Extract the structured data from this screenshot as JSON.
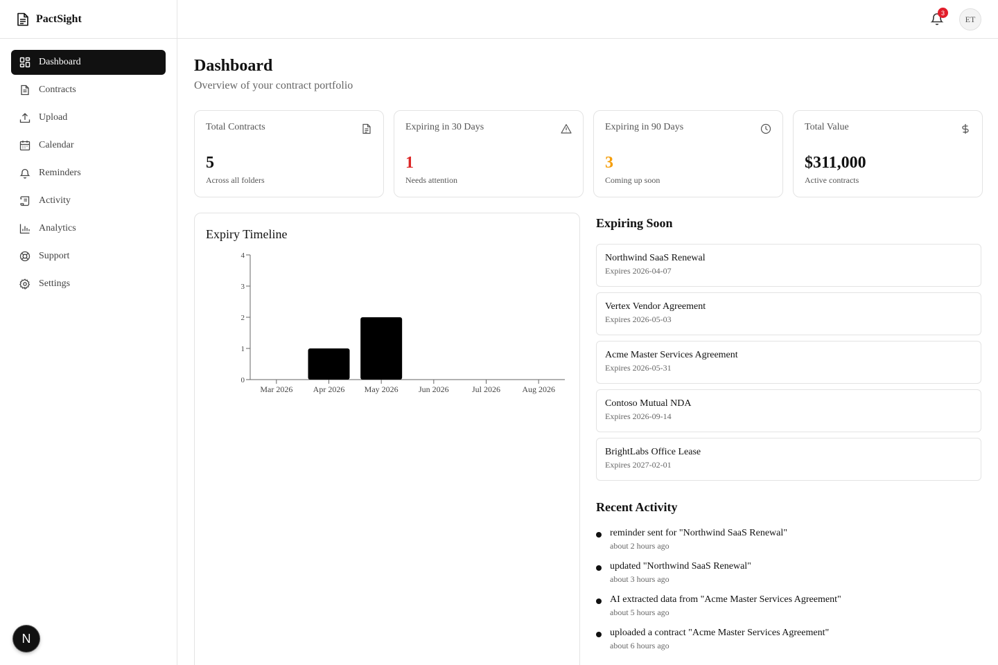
{
  "brand": {
    "name": "PactSight"
  },
  "nav": [
    {
      "label": "Dashboard",
      "icon": "dashboard-icon",
      "active": true
    },
    {
      "label": "Contracts",
      "icon": "file-icon"
    },
    {
      "label": "Upload",
      "icon": "upload-icon"
    },
    {
      "label": "Calendar",
      "icon": "calendar-icon"
    },
    {
      "label": "Reminders",
      "icon": "bell-icon"
    },
    {
      "label": "Activity",
      "icon": "scroll-icon"
    },
    {
      "label": "Analytics",
      "icon": "bar-chart-icon"
    },
    {
      "label": "Support",
      "icon": "lifebuoy-icon"
    },
    {
      "label": "Settings",
      "icon": "gear-icon"
    }
  ],
  "dev_badge": "N",
  "header": {
    "notification_count": "3",
    "avatar_initials": "ET"
  },
  "page": {
    "title": "Dashboard",
    "subtitle": "Overview of your contract portfolio"
  },
  "stats": [
    {
      "label": "Total Contracts",
      "value": "5",
      "note": "Across all folders",
      "icon": "file-icon",
      "color": "#111111"
    },
    {
      "label": "Expiring in 30 Days",
      "value": "1",
      "note": "Needs attention",
      "icon": "alert-triangle-icon",
      "color": "#dc2626"
    },
    {
      "label": "Expiring in 90 Days",
      "value": "3",
      "note": "Coming up soon",
      "icon": "clock-icon",
      "color": "#f59e0b"
    },
    {
      "label": "Total Value",
      "value": "$311,000",
      "note": "Active contracts",
      "icon": "dollar-icon",
      "color": "#111111"
    }
  ],
  "timeline": {
    "title": "Expiry Timeline"
  },
  "chart_data": {
    "type": "bar",
    "title": "Expiry Timeline",
    "categories": [
      "Mar 2026",
      "Apr 2026",
      "May 2026",
      "Jun 2026",
      "Jul 2026",
      "Aug 2026"
    ],
    "values": [
      0,
      1,
      2,
      0,
      0,
      0
    ],
    "ylim": [
      0,
      4
    ],
    "yticks": [
      0,
      1,
      2,
      3,
      4
    ],
    "grid": false,
    "bar_color": "#000000"
  },
  "expiring": {
    "title": "Expiring Soon",
    "items": [
      {
        "name": "Northwind SaaS Renewal",
        "date": "Expires 2026-04-07"
      },
      {
        "name": "Vertex Vendor Agreement",
        "date": "Expires 2026-05-03"
      },
      {
        "name": "Acme Master Services Agreement",
        "date": "Expires 2026-05-31"
      },
      {
        "name": "Contoso Mutual NDA",
        "date": "Expires 2026-09-14"
      },
      {
        "name": "BrightLabs Office Lease",
        "date": "Expires 2027-02-01"
      }
    ]
  },
  "activity": {
    "title": "Recent Activity",
    "items": [
      {
        "text": "reminder sent for \"Northwind SaaS Renewal\"",
        "time": "about 2 hours ago"
      },
      {
        "text": "updated \"Northwind SaaS Renewal\"",
        "time": "about 3 hours ago"
      },
      {
        "text": "AI extracted data from \"Acme Master Services Agreement\"",
        "time": "about 5 hours ago"
      },
      {
        "text": "uploaded a contract \"Acme Master Services Agreement\"",
        "time": "about 6 hours ago"
      }
    ]
  }
}
